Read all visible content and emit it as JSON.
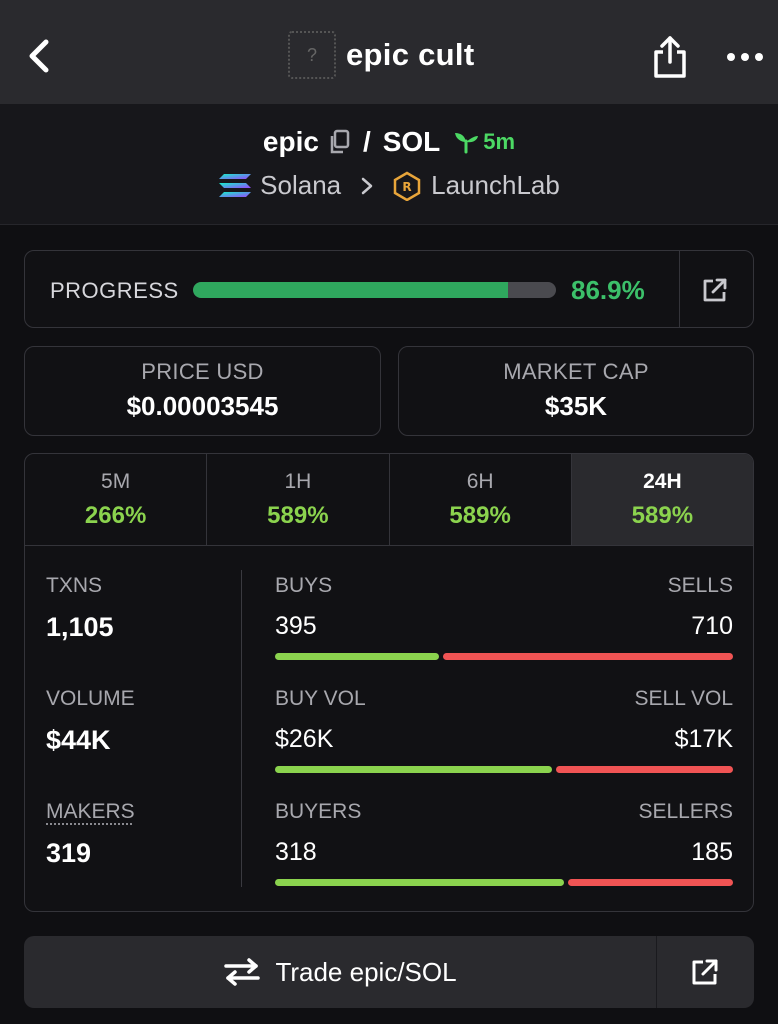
{
  "header": {
    "title": "epic cult",
    "thumb_glyph": "?"
  },
  "pair": {
    "base": "epic",
    "slash": "/",
    "quote": "SOL",
    "age": "5m",
    "chain": "Solana",
    "dex": "LaunchLab"
  },
  "progress": {
    "label": "PROGRESS",
    "value_text": "86.9%",
    "fraction": 0.869
  },
  "stats": {
    "price": {
      "label": "PRICE USD",
      "value": "$0.00003545"
    },
    "mcap": {
      "label": "MARKET CAP",
      "value": "$35K"
    }
  },
  "timeframes": [
    {
      "label": "5M",
      "change": "266%"
    },
    {
      "label": "1H",
      "change": "589%"
    },
    {
      "label": "6H",
      "change": "589%"
    },
    {
      "label": "24H",
      "change": "589%",
      "active": true
    }
  ],
  "metrics": {
    "txns": {
      "label": "TXNS",
      "value": "1,105"
    },
    "volume": {
      "label": "VOLUME",
      "value": "$44K"
    },
    "makers": {
      "label": "MAKERS",
      "value": "319"
    }
  },
  "splits": {
    "txns": {
      "left_label": "BUYS",
      "right_label": "SELLS",
      "left_value": "395",
      "right_value": "710",
      "buy_fraction": 0.357
    },
    "volume": {
      "left_label": "BUY VOL",
      "right_label": "SELL VOL",
      "left_value": "$26K",
      "right_value": "$17K",
      "buy_fraction": 0.605
    },
    "makers": {
      "left_label": "BUYERS",
      "right_label": "SELLERS",
      "left_value": "318",
      "right_value": "185",
      "buy_fraction": 0.632
    }
  },
  "trade": {
    "label": "Trade epic/SOL"
  },
  "colors": {
    "accent_green": "#3cc06a",
    "buy": "#8bd34e",
    "sell": "#f05454"
  }
}
